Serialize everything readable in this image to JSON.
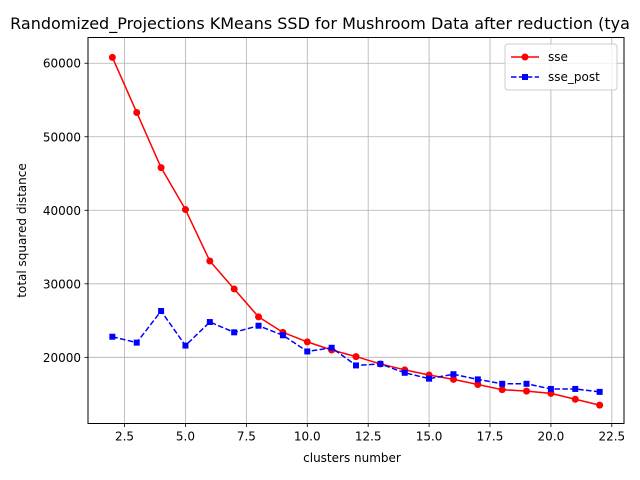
{
  "chart_data": {
    "type": "line",
    "title": "Randomized_Projections KMeans SSD for Mushroom Data after reduction (tya",
    "xlabel": "clusters number",
    "ylabel": "total squared distance",
    "xlim": [
      1.0,
      23.0
    ],
    "ylim": [
      11000,
      63500
    ],
    "xticks": [
      2.5,
      5.0,
      7.5,
      10.0,
      12.5,
      15.0,
      17.5,
      20.0,
      22.5
    ],
    "xtick_labels": [
      "2.5",
      "5.0",
      "7.5",
      "10.0",
      "12.5",
      "15.0",
      "17.5",
      "20.0",
      "22.5"
    ],
    "yticks": [
      20000,
      30000,
      40000,
      50000,
      60000
    ],
    "ytick_labels": [
      "20000",
      "30000",
      "40000",
      "50000",
      "60000"
    ],
    "grid": true,
    "legend_position": "top-right",
    "x": [
      2,
      3,
      4,
      5,
      6,
      7,
      8,
      9,
      10,
      11,
      12,
      13,
      14,
      15,
      16,
      17,
      18,
      19,
      20,
      21,
      22
    ],
    "series": [
      {
        "name": "sse",
        "color": "#ff0000",
        "marker": "circle",
        "linestyle": "solid",
        "values": [
          60800,
          53300,
          45800,
          40100,
          33100,
          29300,
          25500,
          23400,
          22100,
          21000,
          20100,
          19100,
          18300,
          17600,
          17000,
          16300,
          15600,
          15400,
          15100,
          14300,
          13500
        ]
      },
      {
        "name": "sse_post",
        "color": "#0000ff",
        "marker": "square",
        "linestyle": "dashed",
        "values": [
          22800,
          22000,
          26300,
          21600,
          24800,
          23400,
          24300,
          23000,
          20800,
          21300,
          18900,
          19100,
          17900,
          17100,
          17700,
          17000,
          16400,
          16400,
          15700,
          15700,
          15300
        ]
      }
    ]
  }
}
